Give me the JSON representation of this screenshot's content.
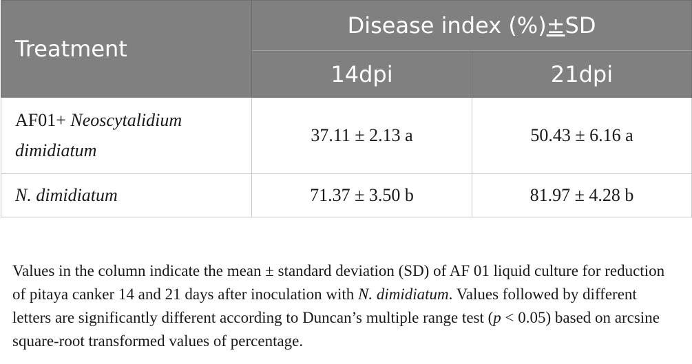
{
  "table": {
    "header": {
      "treatment": "Treatment",
      "group_prefix": "Disease index (%)",
      "group_pm": "±",
      "group_suffix": "SD",
      "col_14": "14dpi",
      "col_21": "21dpi"
    },
    "rows": [
      {
        "treatment_plain": "AF01+ ",
        "treatment_italic": "Neoscytalidium dimidiatum",
        "dpi14": "37.11 ± 2.13 a",
        "dpi21": "50.43 ± 6.16 a"
      },
      {
        "treatment_plain": "",
        "treatment_italic": "N. dimidiatum",
        "dpi14": "71.37 ± 3.50 b",
        "dpi21": "81.97 ± 4.28 b"
      }
    ]
  },
  "footnote": {
    "part1": "Values in the column indicate the mean ± standard deviation (SD) of AF 01 liquid culture for reduction of pitaya canker 14 and 21 days after inoculation with ",
    "italic1": "N. dimidiatum",
    "part2": ". Values followed by different letters are significantly different according to Duncan’s multiple range test (",
    "italic2": "p",
    "part3": " < 0.05) based on arcsine square-root transformed values of percentage."
  }
}
